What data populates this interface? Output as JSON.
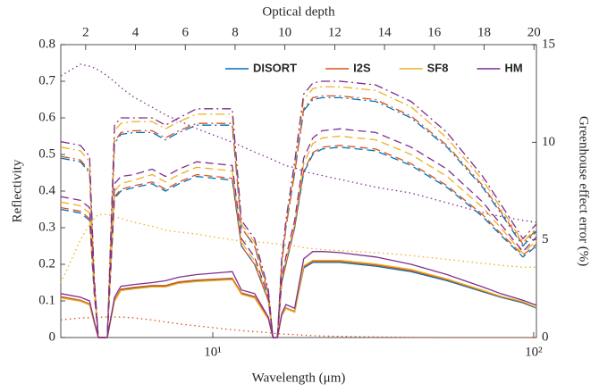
{
  "chart_data": {
    "type": "line",
    "xlabel": "Wavelength (μm)",
    "ylabel": "Reflectivity",
    "y2label": "Greenhouse effect error (%)",
    "x2label": "Optical depth",
    "xscale": "log",
    "xlim": [
      3.36,
      102
    ],
    "xticks": [
      {
        "value": 10,
        "label": "10¹"
      },
      {
        "value": 100,
        "label": "10²"
      }
    ],
    "x2lim": [
      1,
      20.1
    ],
    "x2ticks": [
      2,
      4,
      6,
      8,
      10,
      12,
      14,
      16,
      18,
      20
    ],
    "ylim": [
      0,
      0.8
    ],
    "yticks": [
      0,
      0.1,
      0.2,
      0.3,
      0.4,
      0.5,
      0.6,
      0.7,
      0.8
    ],
    "y2lim": [
      0,
      15
    ],
    "y2ticks": [
      0,
      5,
      10,
      15
    ],
    "legend": "upper right",
    "x": [
      3.36,
      3.87,
      4.13,
      4.27,
      4.4,
      4.69,
      4.94,
      5.17,
      5.69,
      6.47,
      7.12,
      7.84,
      8.91,
      11.5,
      12.28,
      13.5,
      14.9,
      15.4,
      15.9,
      16.4,
      16.9,
      18.0,
      19.2,
      20.5,
      21.9,
      24.9,
      32.2,
      41.5,
      53.7,
      69.4,
      78.9,
      92.6,
      102
    ],
    "series": [
      {
        "name": "DISORT",
        "color": "#0072BD",
        "lines": [
          {
            "style": "solid",
            "values": [
              0.11,
              0.1,
              0.09,
              0.04,
              0,
              0,
              0.1,
              0.13,
              0.135,
              0.14,
              0.14,
              0.15,
              0.155,
              0.16,
              0.12,
              0.11,
              0.05,
              0,
              0,
              0.06,
              0.08,
              0.07,
              0.19,
              0.205,
              0.205,
              0.205,
              0.195,
              0.18,
              0.155,
              0.125,
              0.11,
              0.095,
              0.08
            ]
          },
          {
            "style": "dashed",
            "values": [
              0.35,
              0.34,
              0.32,
              0.12,
              0,
              0,
              0.38,
              0.4,
              0.41,
              0.42,
              0.4,
              0.42,
              0.44,
              0.43,
              0.25,
              0.2,
              0.1,
              0,
              0,
              0.15,
              0.2,
              0.3,
              0.45,
              0.5,
              0.515,
              0.52,
              0.51,
              0.47,
              0.41,
              0.33,
              0.28,
              0.22,
              0.25
            ]
          },
          {
            "style": "dashdot",
            "values": [
              0.49,
              0.48,
              0.45,
              0.15,
              0,
              0,
              0.53,
              0.555,
              0.56,
              0.56,
              0.54,
              0.56,
              0.58,
              0.58,
              0.3,
              0.25,
              0.12,
              0,
              0,
              0.2,
              0.3,
              0.45,
              0.62,
              0.65,
              0.655,
              0.655,
              0.645,
              0.6,
              0.52,
              0.41,
              0.34,
              0.25,
              0.29
            ]
          }
        ]
      },
      {
        "name": "I2S",
        "color": "#D95319",
        "lines": [
          {
            "style": "solid",
            "values": [
              0.112,
              0.102,
              0.092,
              0.041,
              0,
              0,
              0.102,
              0.132,
              0.137,
              0.142,
              0.142,
              0.152,
              0.157,
              0.162,
              0.122,
              0.112,
              0.051,
              0,
              0,
              0.061,
              0.081,
              0.071,
              0.193,
              0.208,
              0.208,
              0.208,
              0.198,
              0.183,
              0.158,
              0.127,
              0.112,
              0.097,
              0.082
            ]
          },
          {
            "style": "dashed",
            "values": [
              0.355,
              0.345,
              0.325,
              0.12,
              0,
              0,
              0.385,
              0.405,
              0.415,
              0.425,
              0.405,
              0.425,
              0.445,
              0.435,
              0.25,
              0.2,
              0.1,
              0,
              0,
              0.15,
              0.2,
              0.3,
              0.455,
              0.505,
              0.52,
              0.525,
              0.515,
              0.475,
              0.415,
              0.335,
              0.285,
              0.225,
              0.255
            ]
          },
          {
            "style": "dashdot",
            "values": [
              0.495,
              0.485,
              0.455,
              0.15,
              0,
              0,
              0.535,
              0.56,
              0.565,
              0.565,
              0.545,
              0.565,
              0.585,
              0.585,
              0.3,
              0.25,
              0.12,
              0,
              0,
              0.2,
              0.3,
              0.45,
              0.625,
              0.655,
              0.66,
              0.66,
              0.65,
              0.605,
              0.525,
              0.415,
              0.345,
              0.255,
              0.295
            ]
          },
          {
            "style": "dotted",
            "axis": "y2",
            "values": [
              0.9,
              1.0,
              1.02,
              1.03,
              1.04,
              1.05,
              1.05,
              1.05,
              1.0,
              0.9,
              0.8,
              0.7,
              0.6,
              0.4,
              0.35,
              0.3,
              0.25,
              0.22,
              0.2,
              0.18,
              0.17,
              0.15,
              0.12,
              0.1,
              0.08,
              0.06,
              0.03,
              0.01,
              0,
              0,
              0,
              0,
              0
            ]
          }
        ]
      },
      {
        "name": "SF8",
        "color": "#EDB120",
        "lines": [
          {
            "style": "solid",
            "values": [
              0.108,
              0.099,
              0.089,
              0.04,
              0,
              0,
              0.099,
              0.128,
              0.133,
              0.138,
              0.138,
              0.148,
              0.153,
              0.158,
              0.118,
              0.108,
              0.049,
              0,
              0,
              0.059,
              0.079,
              0.069,
              0.196,
              0.211,
              0.211,
              0.211,
              0.201,
              0.186,
              0.16,
              0.129,
              0.113,
              0.098,
              0.082
            ]
          },
          {
            "style": "dashed",
            "values": [
              0.37,
              0.36,
              0.34,
              0.13,
              0,
              0,
              0.4,
              0.42,
              0.43,
              0.445,
              0.425,
              0.445,
              0.465,
              0.455,
              0.26,
              0.21,
              0.105,
              0,
              0,
              0.16,
              0.21,
              0.31,
              0.475,
              0.53,
              0.545,
              0.55,
              0.54,
              0.5,
              0.44,
              0.355,
              0.3,
              0.23,
              0.265
            ]
          },
          {
            "style": "dashdot",
            "values": [
              0.52,
              0.51,
              0.48,
              0.16,
              0,
              0,
              0.565,
              0.585,
              0.59,
              0.59,
              0.57,
              0.59,
              0.61,
              0.61,
              0.31,
              0.26,
              0.125,
              0,
              0,
              0.21,
              0.31,
              0.47,
              0.65,
              0.68,
              0.685,
              0.685,
              0.675,
              0.63,
              0.545,
              0.43,
              0.355,
              0.26,
              0.3
            ]
          },
          {
            "style": "dotted",
            "axis": "y2",
            "values": [
              2.8,
              5.0,
              5.8,
              6.1,
              6.3,
              6.3,
              6.2,
              6.1,
              5.9,
              5.7,
              5.5,
              5.4,
              5.3,
              5.0,
              4.95,
              4.9,
              4.85,
              4.8,
              4.8,
              4.75,
              4.7,
              4.7,
              4.6,
              4.55,
              4.5,
              4.45,
              4.35,
              4.2,
              4.0,
              3.8,
              3.7,
              3.6,
              3.6
            ]
          }
        ]
      },
      {
        "name": "HM",
        "color": "#7E2F8E",
        "lines": [
          {
            "style": "solid",
            "values": [
              0.12,
              0.11,
              0.1,
              0.045,
              0,
              0,
              0.11,
              0.14,
              0.145,
              0.15,
              0.155,
              0.165,
              0.172,
              0.18,
              0.13,
              0.12,
              0.055,
              0,
              0,
              0.065,
              0.09,
              0.08,
              0.215,
              0.235,
              0.235,
              0.232,
              0.22,
              0.2,
              0.172,
              0.138,
              0.12,
              0.102,
              0.088
            ]
          },
          {
            "style": "dashed",
            "values": [
              0.385,
              0.375,
              0.355,
              0.135,
              0,
              0,
              0.42,
              0.44,
              0.445,
              0.46,
              0.44,
              0.46,
              0.48,
              0.47,
              0.27,
              0.22,
              0.11,
              0,
              0,
              0.165,
              0.22,
              0.32,
              0.49,
              0.545,
              0.565,
              0.57,
              0.56,
              0.52,
              0.46,
              0.37,
              0.31,
              0.235,
              0.275
            ]
          },
          {
            "style": "dashdot",
            "values": [
              0.535,
              0.525,
              0.495,
              0.165,
              0,
              0,
              0.58,
              0.6,
              0.6,
              0.6,
              0.58,
              0.6,
              0.625,
              0.625,
              0.32,
              0.27,
              0.13,
              0,
              0,
              0.215,
              0.32,
              0.48,
              0.665,
              0.695,
              0.7,
              0.7,
              0.69,
              0.645,
              0.56,
              0.44,
              0.365,
              0.27,
              0.31
            ]
          },
          {
            "style": "dotted",
            "axis": "y2",
            "values": [
              13.4,
              14.0,
              13.9,
              13.8,
              13.7,
              13.4,
              13.1,
              12.8,
              12.3,
              11.8,
              11.4,
              11.1,
              10.7,
              10.0,
              9.8,
              9.5,
              9.2,
              9.1,
              9.0,
              8.9,
              8.8,
              8.7,
              8.5,
              8.4,
              8.3,
              8.1,
              7.7,
              7.4,
              6.9,
              6.4,
              6.2,
              6.0,
              5.9
            ]
          }
        ]
      }
    ]
  }
}
